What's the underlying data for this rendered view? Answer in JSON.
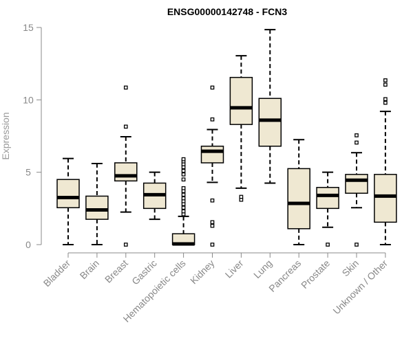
{
  "chart_data": {
    "type": "boxplot",
    "title": "ENSG00000142748 - FCN3",
    "xlabel": "",
    "ylabel": "Expression",
    "ylim": [
      0,
      15
    ],
    "yticks": [
      0,
      5,
      10,
      15
    ],
    "grid": false,
    "categories": [
      "Bladder",
      "Brain",
      "Breast",
      "Gastric",
      "Hematopoietic cells",
      "Kidney",
      "Liver",
      "Lung",
      "Pancreas",
      "Prostate",
      "Skin",
      "Unknown / Other"
    ],
    "boxes": [
      {
        "name": "Bladder",
        "whisker_low": 0.0,
        "q1": 2.55,
        "median": 3.25,
        "q3": 4.5,
        "whisker_high": 5.95,
        "outliers": []
      },
      {
        "name": "Brain",
        "whisker_low": 0.0,
        "q1": 1.75,
        "median": 2.4,
        "q3": 3.35,
        "whisker_high": 5.6,
        "outliers": []
      },
      {
        "name": "Breast",
        "whisker_low": 2.25,
        "q1": 4.4,
        "median": 4.75,
        "q3": 5.65,
        "whisker_high": 7.45,
        "outliers": [
          0.0,
          8.15,
          10.85
        ]
      },
      {
        "name": "Gastric",
        "whisker_low": 1.75,
        "q1": 2.5,
        "median": 3.45,
        "q3": 4.25,
        "whisker_high": 5.0,
        "outliers": []
      },
      {
        "name": "Hematopoietic cells",
        "whisker_low": 0.0,
        "q1": 0.0,
        "median": 0.05,
        "q3": 0.75,
        "whisker_high": 1.95,
        "outliers": [
          2.1,
          2.3,
          2.55,
          2.8,
          3.0,
          3.2,
          3.45,
          3.7,
          3.9,
          4.5,
          4.85,
          5.1,
          5.35,
          5.55,
          5.75,
          5.9
        ]
      },
      {
        "name": "Kidney",
        "whisker_low": 4.3,
        "q1": 5.65,
        "median": 6.45,
        "q3": 6.8,
        "whisker_high": 7.95,
        "outliers": [
          0.0,
          1.3,
          1.55,
          3.05,
          8.65,
          10.85
        ]
      },
      {
        "name": "Liver",
        "whisker_low": 3.9,
        "q1": 8.3,
        "median": 9.45,
        "q3": 11.55,
        "whisker_high": 13.05,
        "outliers": [
          3.1,
          3.3
        ]
      },
      {
        "name": "Lung",
        "whisker_low": 4.25,
        "q1": 6.8,
        "median": 8.6,
        "q3": 10.1,
        "whisker_high": 14.85,
        "outliers": []
      },
      {
        "name": "Pancreas",
        "whisker_low": 0.0,
        "q1": 1.1,
        "median": 2.85,
        "q3": 5.25,
        "whisker_high": 7.25,
        "outliers": []
      },
      {
        "name": "Prostate",
        "whisker_low": 1.2,
        "q1": 2.5,
        "median": 3.4,
        "q3": 3.95,
        "whisker_high": 5.0,
        "outliers": [
          0.0
        ]
      },
      {
        "name": "Skin",
        "whisker_low": 2.55,
        "q1": 3.55,
        "median": 4.45,
        "q3": 4.85,
        "whisker_high": 6.35,
        "outliers": [
          0.0,
          7.05,
          7.55
        ]
      },
      {
        "name": "Unknown / Other",
        "whisker_low": 0.0,
        "q1": 1.55,
        "median": 3.35,
        "q3": 4.85,
        "whisker_high": 9.2,
        "outliers": [
          9.8,
          10.05,
          11.05,
          11.35
        ]
      }
    ],
    "box_fill": "#efe8d2",
    "axis_color": "#888888"
  }
}
